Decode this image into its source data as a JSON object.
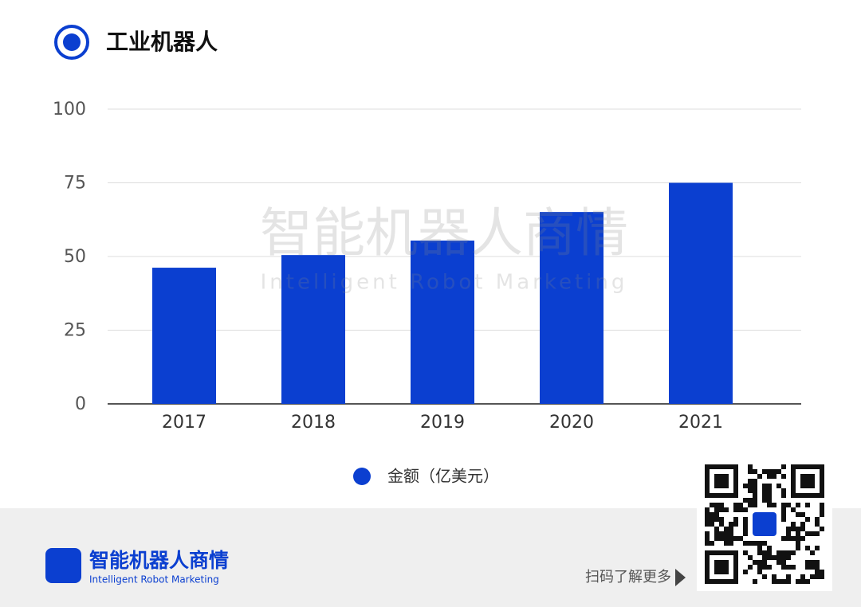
{
  "chart_data": {
    "type": "bar",
    "title": "工业机器人",
    "categories": [
      "2017",
      "2018",
      "2019",
      "2020",
      "2021"
    ],
    "series": [
      {
        "name": "金额（亿美元）",
        "color": "#0b3fd0",
        "values": [
          46.2,
          50.5,
          55.4,
          65.1,
          75
        ]
      }
    ],
    "ylim": [
      0,
      100
    ],
    "yticks": [
      0,
      25,
      50,
      75,
      100
    ],
    "grid": true
  },
  "watermark": {
    "title": "智能机器人商情",
    "subtitle": "Intelligent Robot Marketing"
  },
  "footer": {
    "brand": "智能机器人商情",
    "brand_subtitle": "Intelligent Robot Marketing",
    "qr_caption": "扫码了解更多"
  }
}
